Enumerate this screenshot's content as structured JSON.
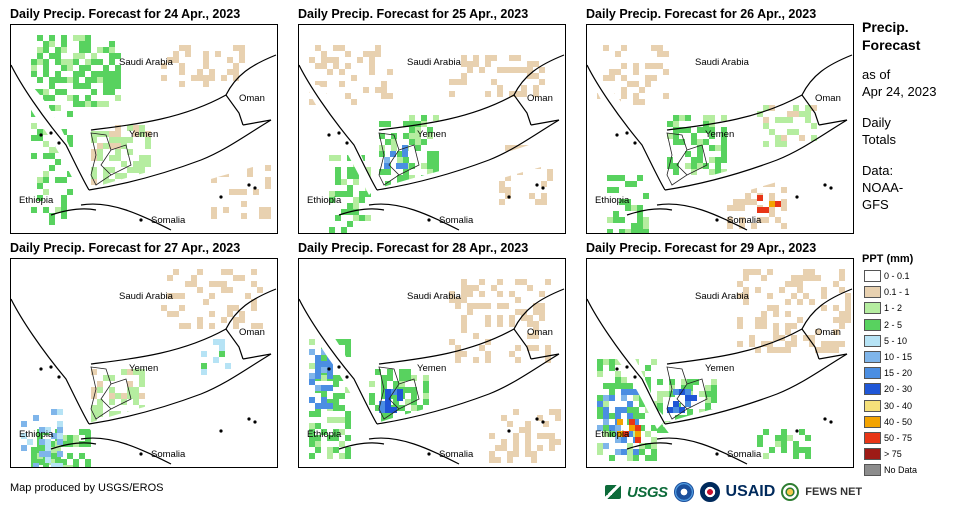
{
  "panels": [
    {
      "title": "Daily Precip. Forecast for 24 Apr., 2023"
    },
    {
      "title": "Daily Precip. Forecast for 25 Apr., 2023"
    },
    {
      "title": "Daily Precip. Forecast for 26 Apr., 2023"
    },
    {
      "title": "Daily Precip. Forecast for 27 Apr., 2023"
    },
    {
      "title": "Daily Precip. Forecast for 28 Apr., 2023"
    },
    {
      "title": "Daily Precip. Forecast for 29 Apr., 2023"
    }
  ],
  "map_labels": {
    "saudi": "Saudi Arabia",
    "oman": "Oman",
    "yemen": "Yemen",
    "ethiopia": "Ethiopia",
    "somalia": "Somalia"
  },
  "side": {
    "heading_line1": "Precip.",
    "heading_line2": "Forecast",
    "asof_line1": "as of",
    "asof_line2": "Apr 24, 2023",
    "totals_line1": "Daily",
    "totals_line2": "Totals",
    "data_line1": "Data:",
    "data_line2": "NOAA-",
    "data_line3": "GFS"
  },
  "legend": {
    "title": "PPT (mm)",
    "items": [
      {
        "label": "0 - 0.1",
        "color": "#ffffff"
      },
      {
        "label": "0.1 - 1",
        "color": "#e8d1b0"
      },
      {
        "label": "1 - 2",
        "color": "#b5eda0"
      },
      {
        "label": "2 - 5",
        "color": "#58d25f"
      },
      {
        "label": "5 - 10",
        "color": "#b6e3f5"
      },
      {
        "label": "10 - 15",
        "color": "#7fb5ea"
      },
      {
        "label": "15 - 20",
        "color": "#4b8ee2"
      },
      {
        "label": "20 - 30",
        "color": "#1f56d6"
      },
      {
        "label": "30 - 40",
        "color": "#f5e07a"
      },
      {
        "label": "40 - 50",
        "color": "#f3a300"
      },
      {
        "label": "50 - 75",
        "color": "#e83516"
      },
      {
        "label": "> 75",
        "color": "#9e1b16"
      },
      {
        "label": "No Data",
        "color": "#8c8c8c"
      }
    ]
  },
  "footer": {
    "credit": "Map produced by USGS/EROS",
    "logo_usgs": "USGS",
    "logo_usaid": "USAID",
    "logo_fews": "FEWS NET"
  }
}
